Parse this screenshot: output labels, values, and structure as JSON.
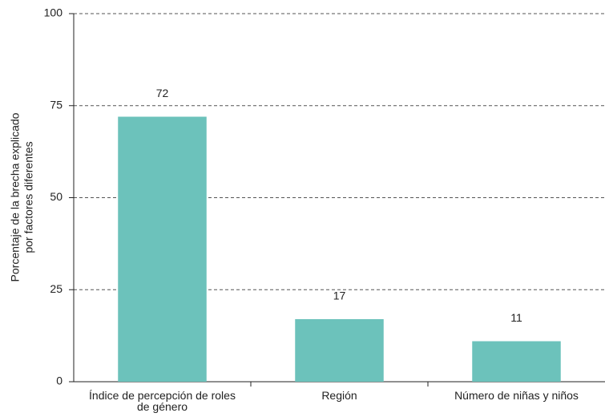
{
  "chart_data": {
    "type": "bar",
    "ylabel": [
      "Porcentaje de la brecha explicado",
      "por factores diferentes"
    ],
    "categories": [
      "Índice de percepción de roles de género",
      "Región",
      "Número de niñas y niños"
    ],
    "values": [
      72,
      17,
      11
    ],
    "color": "#6cc2bb",
    "ylim": [
      0,
      100
    ],
    "yticks": [
      0,
      25,
      50,
      75,
      100
    ],
    "grid": true
  }
}
